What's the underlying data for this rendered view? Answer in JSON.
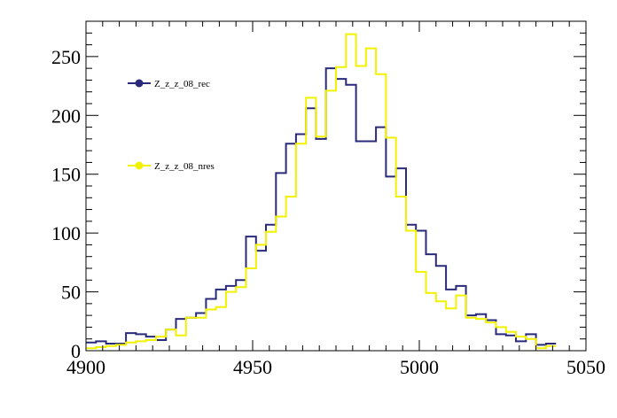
{
  "chart_data": {
    "type": "line",
    "xlim": [
      4900,
      5050
    ],
    "ylim": [
      0,
      280
    ],
    "x_ticks": [
      4900,
      4950,
      5000,
      5050
    ],
    "y_ticks": [
      0,
      50,
      100,
      150,
      200,
      250
    ],
    "bin_width": 3,
    "grid": false,
    "legend_position": "top-left",
    "series": [
      {
        "name": "Z_z_z_08_rec",
        "color": "#2a2a7a",
        "style": "step",
        "values": [
          7,
          8,
          6,
          6,
          15,
          14,
          12,
          9,
          18,
          27,
          28,
          32,
          44,
          52,
          55,
          60,
          97,
          85,
          107,
          151,
          176,
          184,
          206,
          180,
          240,
          231,
          226,
          178,
          178,
          190,
          148,
          155,
          107,
          102,
          82,
          72,
          52,
          55,
          30,
          31,
          26,
          14,
          13,
          8,
          14,
          5,
          6
        ]
      },
      {
        "name": "Z_z_z_08_nres",
        "color": "#f2f200",
        "style": "step",
        "values": [
          2,
          3,
          4,
          5,
          7,
          8,
          9,
          12,
          18,
          13,
          28,
          28,
          35,
          37,
          50,
          54,
          70,
          90,
          101,
          114,
          131,
          176,
          215,
          182,
          221,
          241,
          269,
          242,
          257,
          235,
          181,
          131,
          102,
          67,
          49,
          42,
          36,
          47,
          28,
          27,
          24,
          20,
          16,
          12,
          10,
          2,
          4
        ]
      }
    ]
  }
}
